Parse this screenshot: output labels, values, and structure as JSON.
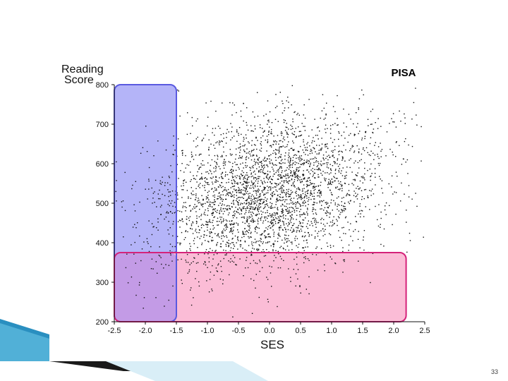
{
  "chart_data": {
    "type": "scatter",
    "title": "PISA",
    "xlabel": "SES",
    "ylabel_lines": [
      "Reading",
      "Score"
    ],
    "xlim": [
      -2.5,
      2.5
    ],
    "ylim": [
      200,
      800
    ],
    "x_ticks": [
      "-2.5",
      "-2.0",
      "-1.5",
      "-1.0",
      "-0.5",
      "0.0",
      "0.5",
      "1.0",
      "1.5",
      "2.0",
      "2.5"
    ],
    "y_ticks": [
      "800",
      "700",
      "600",
      "500",
      "400",
      "300",
      "200"
    ],
    "grid": false,
    "point_cloud": {
      "count": 3200,
      "ses_mean": 0.0,
      "ses_sd": 0.95,
      "score_mean": 525,
      "score_sd": 95,
      "score_per_ses": 32
    },
    "highlights": [
      {
        "name": "low-ses-band",
        "x_range": [
          -2.5,
          -1.5
        ],
        "y_range": [
          200,
          800
        ],
        "fill": "#b4b4f8",
        "stroke": "#5a5ae0"
      },
      {
        "name": "low-score-band",
        "x_range": [
          -2.5,
          2.2
        ],
        "y_range": [
          200,
          375
        ],
        "fill": "#fbbcd6",
        "stroke": "#d4237a"
      }
    ],
    "colors": {
      "points": "#111111",
      "overlap": "#c39be6"
    }
  },
  "slide": {
    "number": "33"
  }
}
